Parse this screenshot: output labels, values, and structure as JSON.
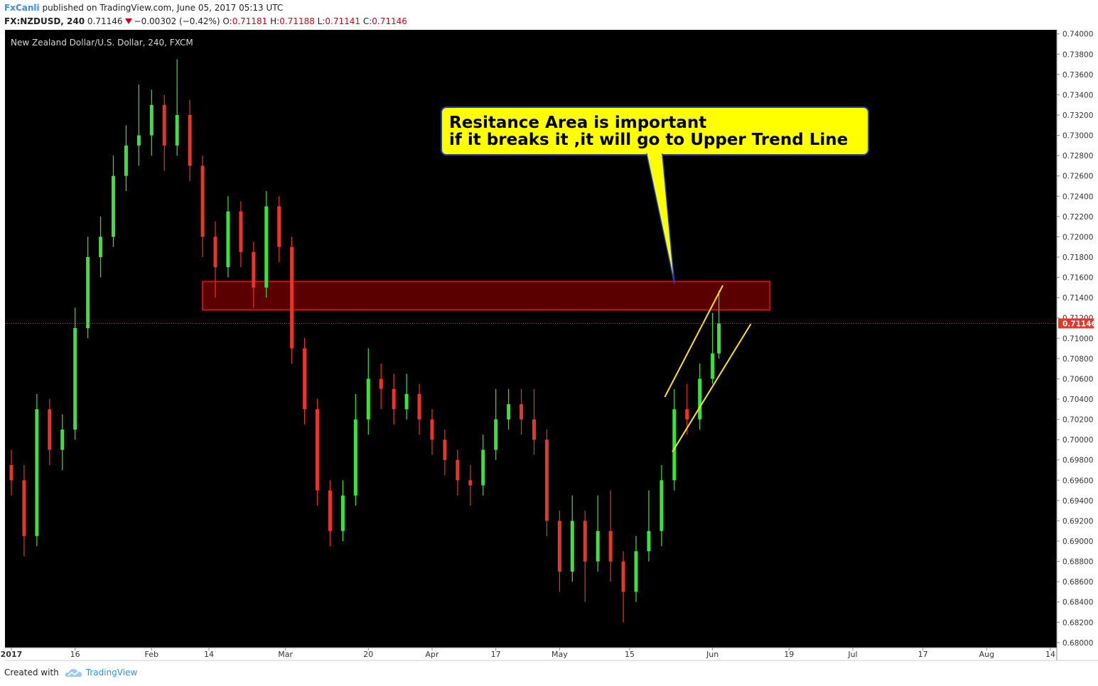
{
  "header": {
    "author": "FxCanli",
    "published": "published on TradingView.com, June 05, 2017 05:13 UTC",
    "symbol": "FX:NZDUSD, 240",
    "last": "0.71146",
    "change": "−0.00302 (−0.42%)",
    "o_label": "O:",
    "o": "0.71181",
    "h_label": "H:",
    "h": "0.71188",
    "l_label": "L:",
    "l": "0.71141",
    "c_label": "C:",
    "c": "0.71146"
  },
  "chart_data": {
    "type": "candlestick",
    "title": "New Zealand Dollar/U.S. Dollar, 240, FXCM",
    "up_color": "#3ee03e",
    "down_color": "#e8342a",
    "background": "#000000",
    "x": [
      1,
      3,
      5,
      7,
      9,
      11,
      13,
      15,
      17,
      19,
      21,
      23,
      25,
      27,
      29,
      31,
      33,
      35,
      37,
      39,
      41,
      43,
      45,
      47,
      49,
      51,
      53,
      55,
      57,
      59,
      61,
      63,
      65,
      67,
      69,
      71,
      73,
      75,
      77,
      79,
      81,
      83,
      85,
      87,
      89,
      91,
      93,
      95,
      97,
      99,
      101,
      103,
      105,
      107,
      109,
      111,
      112
    ],
    "open": [
      0.6975,
      0.696,
      0.6905,
      0.703,
      0.699,
      0.701,
      0.711,
      0.718,
      0.72,
      0.726,
      0.729,
      0.73,
      0.733,
      0.729,
      0.732,
      0.727,
      0.72,
      0.717,
      0.7225,
      0.7185,
      0.715,
      0.723,
      0.719,
      0.709,
      0.703,
      0.695,
      0.691,
      0.6945,
      0.702,
      0.706,
      0.705,
      0.703,
      0.7045,
      0.702,
      0.7,
      0.698,
      0.696,
      0.6955,
      0.699,
      0.702,
      0.7035,
      0.702,
      0.7,
      0.692,
      0.687,
      0.692,
      0.688,
      0.691,
      0.688,
      0.685,
      0.689,
      0.691,
      0.696,
      0.703,
      0.702,
      0.706,
      0.7085
    ],
    "high": [
      0.699,
      0.6975,
      0.7045,
      0.704,
      0.7025,
      0.713,
      0.72,
      0.722,
      0.728,
      0.731,
      0.735,
      0.7345,
      0.734,
      0.7375,
      0.7335,
      0.728,
      0.7215,
      0.724,
      0.7235,
      0.7195,
      0.7245,
      0.724,
      0.72,
      0.71,
      0.704,
      0.696,
      0.696,
      0.7045,
      0.709,
      0.7075,
      0.7065,
      0.7065,
      0.7055,
      0.703,
      0.701,
      0.699,
      0.6975,
      0.7005,
      0.705,
      0.705,
      0.705,
      0.705,
      0.701,
      0.693,
      0.6945,
      0.693,
      0.6945,
      0.695,
      0.689,
      0.6905,
      0.695,
      0.6975,
      0.705,
      0.7055,
      0.7075,
      0.7125,
      0.7147
    ],
    "low": [
      0.6945,
      0.6885,
      0.6895,
      0.6975,
      0.697,
      0.7,
      0.71,
      0.716,
      0.719,
      0.7245,
      0.727,
      0.728,
      0.7265,
      0.728,
      0.7255,
      0.718,
      0.714,
      0.716,
      0.717,
      0.713,
      0.714,
      0.7175,
      0.7075,
      0.7015,
      0.6935,
      0.6895,
      0.69,
      0.6935,
      0.7005,
      0.703,
      0.7015,
      0.702,
      0.7005,
      0.6985,
      0.6965,
      0.6945,
      0.6935,
      0.6945,
      0.698,
      0.701,
      0.7005,
      0.6985,
      0.6905,
      0.685,
      0.686,
      0.684,
      0.687,
      0.686,
      0.682,
      0.684,
      0.688,
      0.6895,
      0.695,
      0.7005,
      0.701,
      0.7055,
      0.708
    ],
    "close": [
      0.696,
      0.6905,
      0.703,
      0.699,
      0.701,
      0.711,
      0.718,
      0.72,
      0.726,
      0.729,
      0.73,
      0.733,
      0.729,
      0.732,
      0.727,
      0.72,
      0.717,
      0.7225,
      0.7185,
      0.715,
      0.723,
      0.719,
      0.709,
      0.703,
      0.695,
      0.691,
      0.6945,
      0.702,
      0.706,
      0.705,
      0.703,
      0.7045,
      0.702,
      0.7,
      0.698,
      0.696,
      0.6955,
      0.699,
      0.702,
      0.7035,
      0.702,
      0.7,
      0.692,
      0.687,
      0.692,
      0.688,
      0.691,
      0.688,
      0.685,
      0.689,
      0.691,
      0.696,
      0.703,
      0.702,
      0.706,
      0.7085,
      0.71146
    ],
    "xlim": [
      0,
      165
    ],
    "xticks": [
      {
        "value": 1,
        "label": "2017"
      },
      {
        "value": 11,
        "label": "16"
      },
      {
        "value": 23,
        "label": "Feb"
      },
      {
        "value": 32,
        "label": "14"
      },
      {
        "value": 44,
        "label": "Mar"
      },
      {
        "value": 57,
        "label": "20"
      },
      {
        "value": 67,
        "label": "Apr"
      },
      {
        "value": 77,
        "label": "17"
      },
      {
        "value": 87,
        "label": "May"
      },
      {
        "value": 98,
        "label": "15"
      },
      {
        "value": 111,
        "label": "Jun"
      },
      {
        "value": 123,
        "label": "19"
      },
      {
        "value": 133,
        "label": "Jul"
      },
      {
        "value": 144,
        "label": "17"
      },
      {
        "value": 154,
        "label": "Aug"
      },
      {
        "value": 164,
        "label": "14"
      }
    ],
    "ylim": [
      0.6795,
      0.7404
    ],
    "yticks": [
      {
        "value": 0.68,
        "label": "0.68000"
      },
      {
        "value": 0.682,
        "label": "0.68200"
      },
      {
        "value": 0.684,
        "label": "0.68400"
      },
      {
        "value": 0.686,
        "label": "0.68600"
      },
      {
        "value": 0.688,
        "label": "0.68800"
      },
      {
        "value": 0.69,
        "label": "0.69000"
      },
      {
        "value": 0.692,
        "label": "0.69200"
      },
      {
        "value": 0.694,
        "label": "0.69400"
      },
      {
        "value": 0.696,
        "label": "0.69600"
      },
      {
        "value": 0.698,
        "label": "0.69800"
      },
      {
        "value": 0.7,
        "label": "0.70000"
      },
      {
        "value": 0.702,
        "label": "0.70200"
      },
      {
        "value": 0.704,
        "label": "0.70400"
      },
      {
        "value": 0.706,
        "label": "0.70600"
      },
      {
        "value": 0.708,
        "label": "0.70800"
      },
      {
        "value": 0.71,
        "label": "0.71000"
      },
      {
        "value": 0.712,
        "label": "0.71200"
      },
      {
        "value": 0.714,
        "label": "0.71400"
      },
      {
        "value": 0.716,
        "label": "0.71600"
      },
      {
        "value": 0.718,
        "label": "0.71800"
      },
      {
        "value": 0.72,
        "label": "0.72000"
      },
      {
        "value": 0.722,
        "label": "0.72200"
      },
      {
        "value": 0.724,
        "label": "0.72400"
      },
      {
        "value": 0.726,
        "label": "0.72600"
      },
      {
        "value": 0.728,
        "label": "0.72800"
      },
      {
        "value": 0.73,
        "label": "0.73000"
      },
      {
        "value": 0.732,
        "label": "0.73200"
      },
      {
        "value": 0.734,
        "label": "0.73400"
      },
      {
        "value": 0.736,
        "label": "0.73600"
      },
      {
        "value": 0.738,
        "label": "0.73800"
      },
      {
        "value": 0.74,
        "label": "0.74000"
      }
    ],
    "price_line": {
      "value": 0.71146,
      "label": "0.71146",
      "color": "#e8342a"
    },
    "resistance_zone": {
      "low": 0.7128,
      "high": 0.7156,
      "x_start": 31,
      "x_end": 120
    },
    "channel": [
      {
        "x": [
          103.5,
          112.6
        ],
        "y": [
          0.7042,
          0.7152
        ]
      },
      {
        "x": [
          104.7,
          117
        ],
        "y": [
          0.6988,
          0.7114
        ]
      }
    ],
    "annotation": [
      "Resitance Area is important",
      "if it breaks it ,it will go to Upper Trend Line"
    ]
  },
  "footer": {
    "created_with": "Created with",
    "brand": "TradingView"
  }
}
